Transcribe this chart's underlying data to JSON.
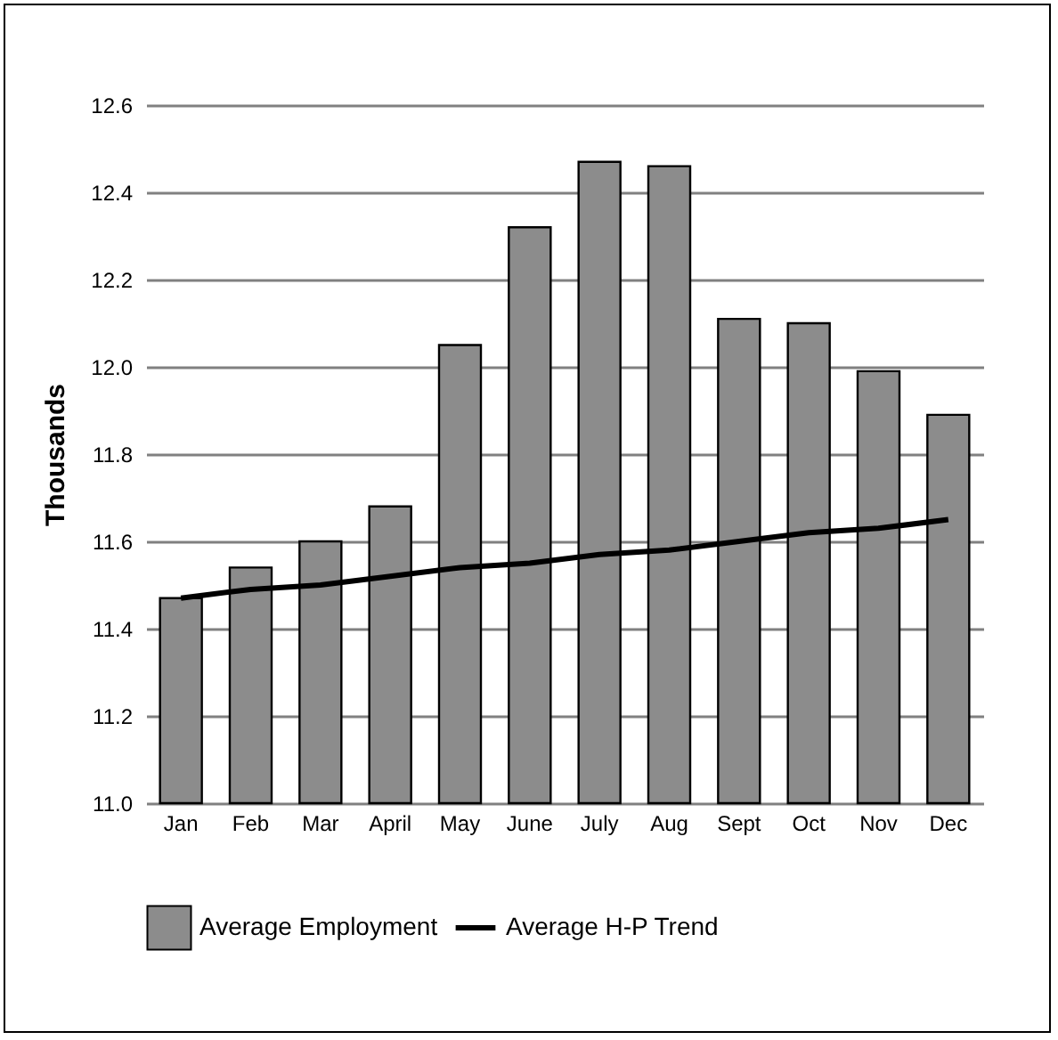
{
  "chart_data": {
    "type": "bar",
    "ylabel": "Thousands",
    "categories": [
      "Jan",
      "Feb",
      "Mar",
      "April",
      "May",
      "June",
      "July",
      "Aug",
      "Sept",
      "Oct",
      "Nov",
      "Dec"
    ],
    "series": [
      {
        "name": "Average Employment",
        "color": "#8c8c8c",
        "values": [
          11.47,
          11.54,
          11.6,
          11.68,
          12.05,
          12.32,
          12.47,
          12.46,
          12.11,
          12.1,
          11.99,
          11.89
        ]
      },
      {
        "name": "Average H-P Trend",
        "type": "line",
        "color": "#000000",
        "values": [
          11.47,
          11.49,
          11.5,
          11.52,
          11.54,
          11.55,
          11.57,
          11.58,
          11.6,
          11.62,
          11.63,
          11.65
        ]
      }
    ],
    "ylim": [
      11.0,
      12.6
    ],
    "yticks": [
      {
        "value": 11.0,
        "label": "11.0"
      },
      {
        "value": 11.2,
        "label": "11.2"
      },
      {
        "value": 11.4,
        "label": "11.4"
      },
      {
        "value": 11.6,
        "label": "11.6"
      },
      {
        "value": 11.8,
        "label": "11.8"
      },
      {
        "value": 12.0,
        "label": "12.0"
      },
      {
        "value": 12.2,
        "label": "12.2"
      },
      {
        "value": 12.4,
        "label": "12.4"
      },
      {
        "value": 12.6,
        "label": "12.6"
      }
    ],
    "grid": "y",
    "legend": "bottom"
  }
}
